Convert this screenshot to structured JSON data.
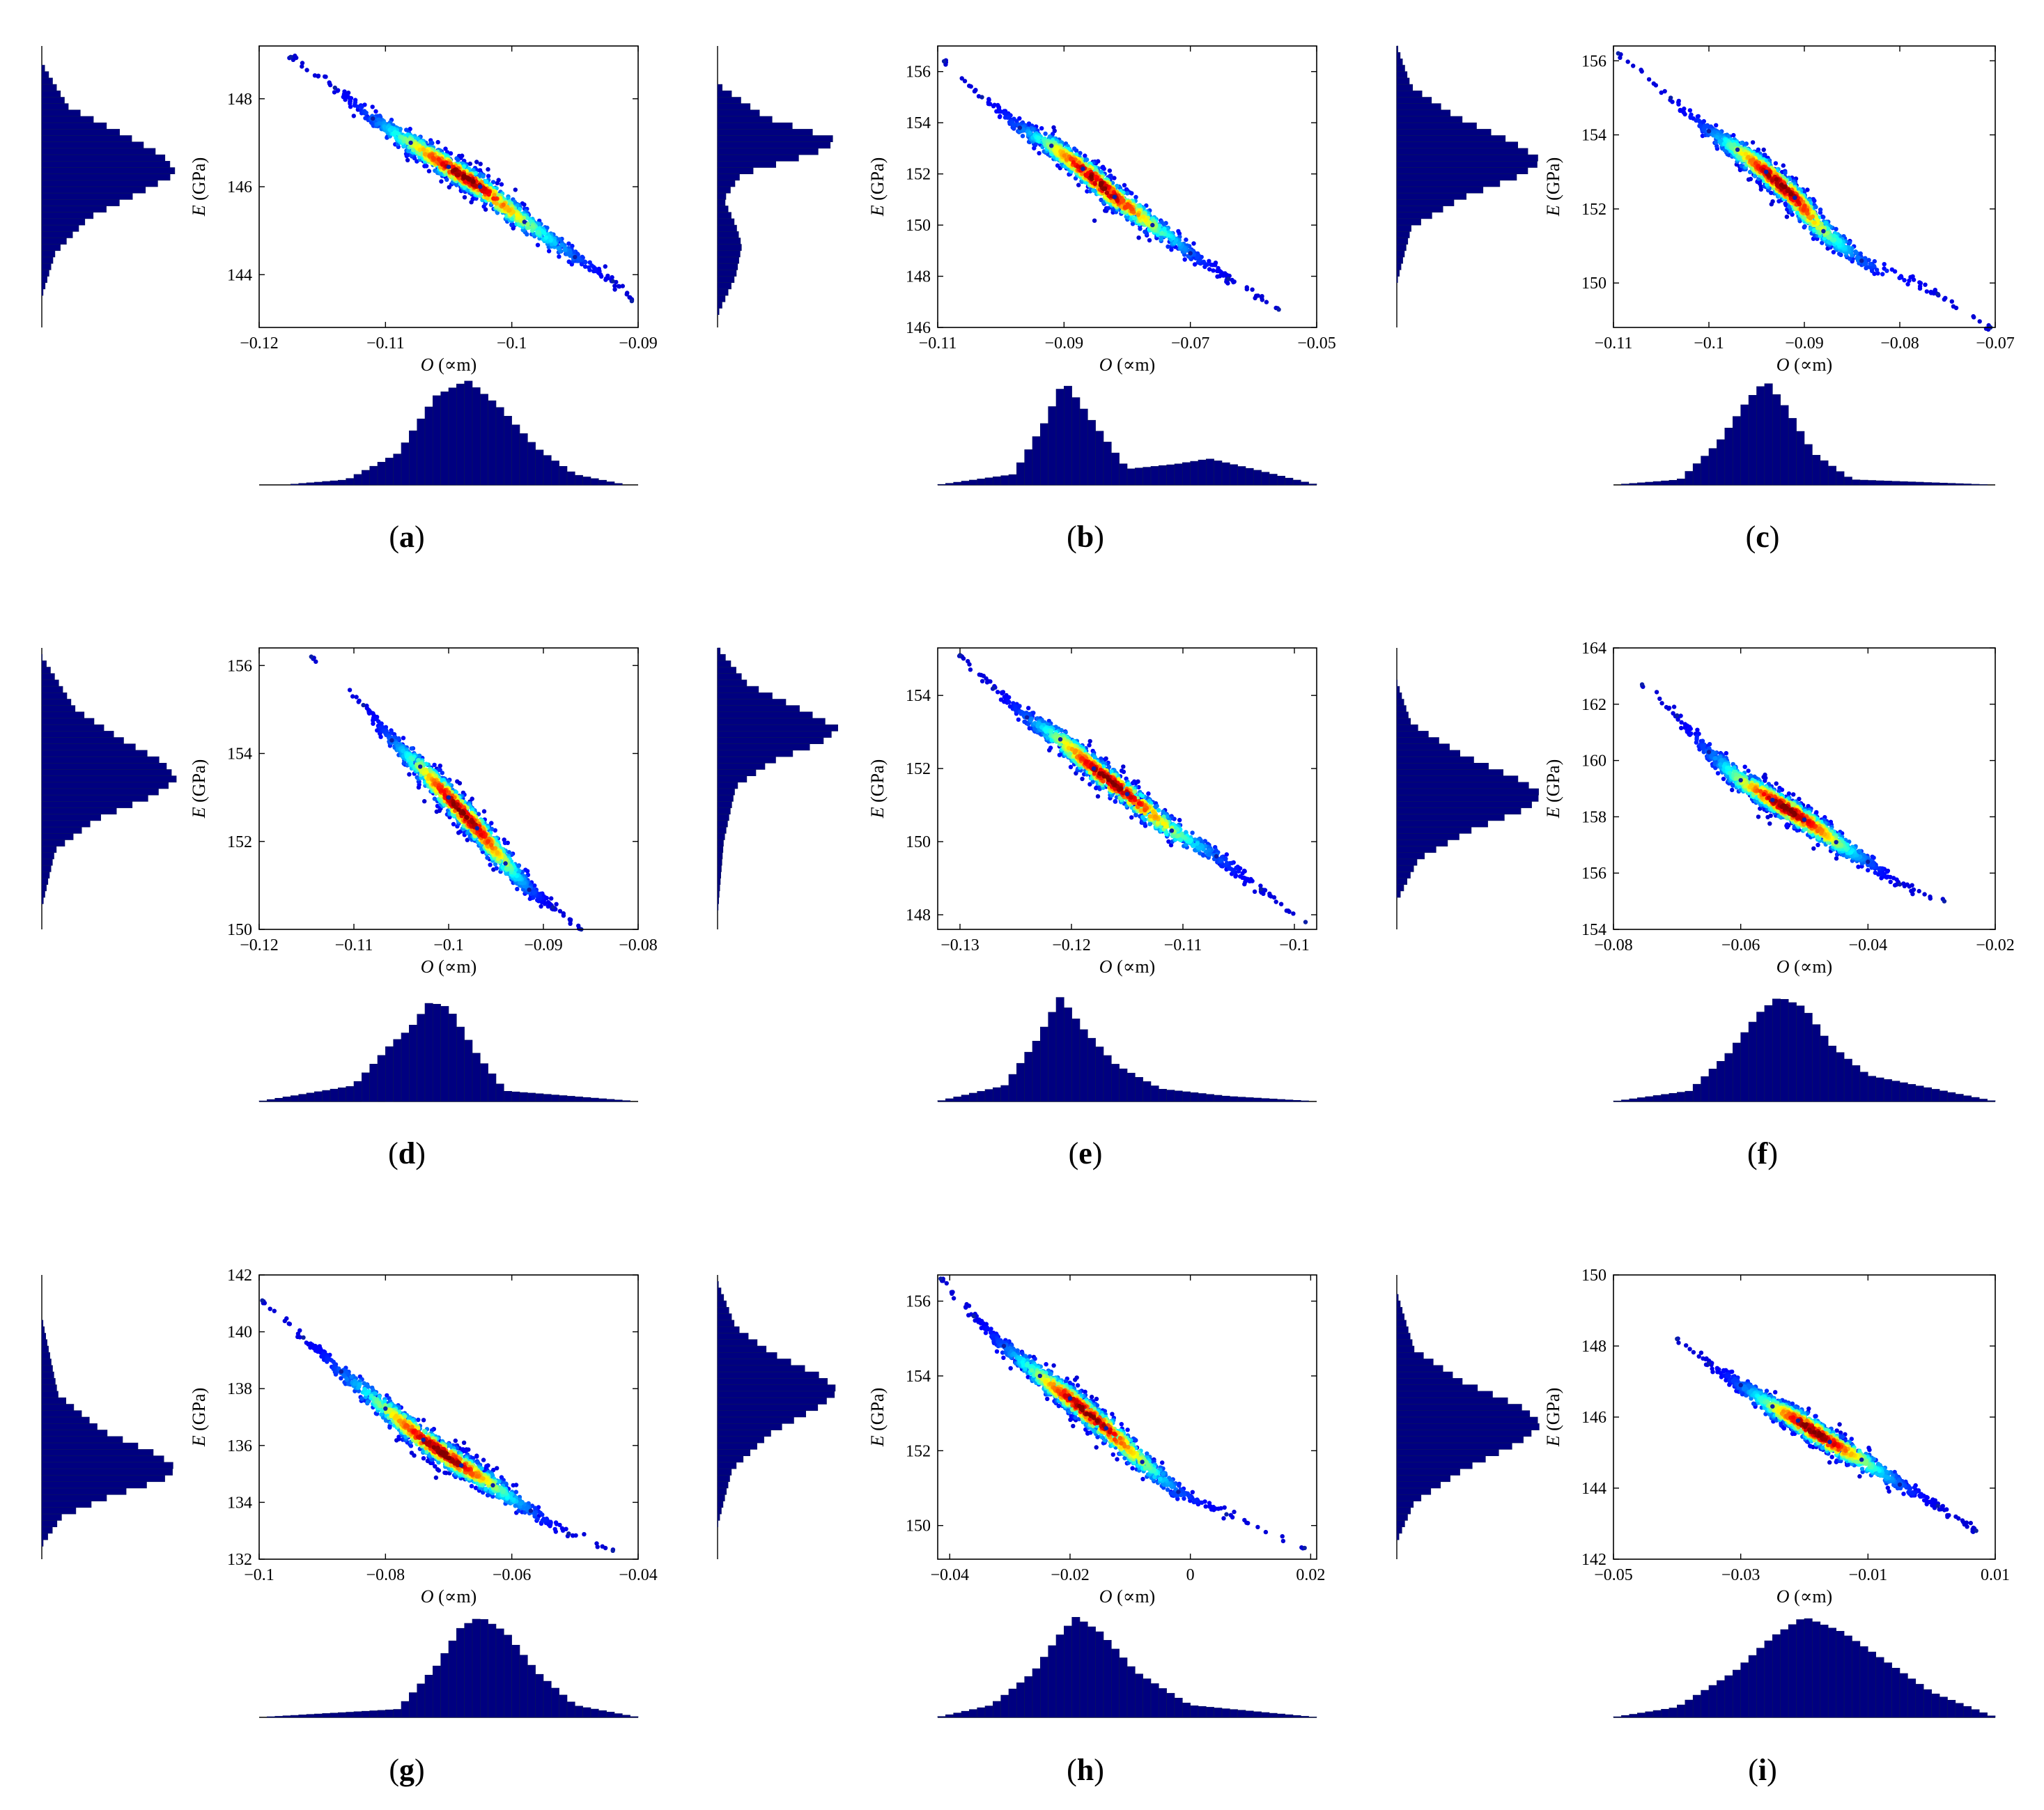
{
  "figure": {
    "chart_count": 9
  },
  "chart_data": [
    {
      "id": "a",
      "type": "scatter",
      "panel_label_prefix": "(",
      "panel_label": "a",
      "panel_label_suffix": ")",
      "xlabel_var": "O",
      "xlabel_unit": " (∝m)",
      "ylabel_var": "E",
      "ylabel_unit": " (GPa)",
      "xlim": [
        -0.12,
        -0.09
      ],
      "ylim": [
        142.8,
        149.2
      ],
      "xticks": [
        -0.12,
        -0.11,
        -0.1,
        -0.09
      ],
      "xtick_labels": [
        "−0.12",
        "−0.11",
        "−0.1",
        "−0.09"
      ],
      "yticks": [
        144,
        146,
        148
      ],
      "ytick_labels": [
        "144",
        "146",
        "148"
      ],
      "points": [
        [
          -0.1175,
          148.95
        ],
        [
          -0.114,
          148.25
        ],
        [
          -0.111,
          147.55
        ],
        [
          -0.108,
          147.0
        ],
        [
          -0.105,
          146.45
        ],
        [
          -0.1025,
          146.0
        ],
        [
          -0.099,
          145.2
        ],
        [
          -0.095,
          144.4
        ],
        [
          -0.092,
          143.85
        ],
        [
          -0.0905,
          143.4
        ]
      ],
      "x_marginal": {
        "x": [
          -0.118,
          -0.113,
          -0.109,
          -0.106,
          -0.1035,
          -0.101,
          -0.098,
          -0.095,
          -0.091
        ],
        "density": [
          0.0,
          0.05,
          0.3,
          0.85,
          1.0,
          0.75,
          0.35,
          0.1,
          0.0
        ]
      },
      "y_marginal": {
        "y": [
          143.5,
          144.5,
          145.3,
          145.9,
          146.3,
          146.7,
          147.2,
          147.8,
          148.8
        ],
        "density": [
          0.0,
          0.1,
          0.35,
          0.75,
          1.0,
          0.9,
          0.6,
          0.2,
          0.0
        ]
      }
    },
    {
      "id": "b",
      "type": "scatter",
      "panel_label_prefix": "(",
      "panel_label": "b",
      "panel_label_suffix": ")",
      "xlabel_var": "O",
      "xlabel_unit": " (∝m)",
      "ylabel_var": "E",
      "ylabel_unit": " (GPa)",
      "xlim": [
        -0.11,
        -0.05
      ],
      "ylim": [
        146.0,
        157.0
      ],
      "xticks": [
        -0.11,
        -0.09,
        -0.07,
        -0.05
      ],
      "xtick_labels": [
        "−0.11",
        "−0.09",
        "−0.07",
        "−0.05"
      ],
      "yticks": [
        146,
        148,
        150,
        152,
        154,
        156
      ],
      "ytick_labels": [
        "146",
        "148",
        "150",
        "152",
        "154",
        "156"
      ],
      "points": [
        [
          -0.109,
          156.4
        ],
        [
          -0.103,
          155.0
        ],
        [
          -0.097,
          153.8
        ],
        [
          -0.092,
          153.1
        ],
        [
          -0.087,
          152.2
        ],
        [
          -0.082,
          151.1
        ],
        [
          -0.076,
          150.0
        ],
        [
          -0.07,
          148.9
        ],
        [
          -0.064,
          147.9
        ],
        [
          -0.056,
          146.7
        ]
      ],
      "x_marginal": {
        "x": [
          -0.11,
          -0.098,
          -0.093,
          -0.09,
          -0.086,
          -0.08,
          -0.072,
          -0.067,
          -0.06,
          -0.05
        ],
        "density": [
          0.0,
          0.1,
          0.6,
          1.0,
          0.65,
          0.15,
          0.2,
          0.25,
          0.15,
          0.0
        ]
      },
      "y_marginal": {
        "y": [
          146.5,
          148.0,
          149.2,
          150.0,
          151.0,
          152.0,
          152.8,
          153.3,
          154.2,
          155.5
        ],
        "density": [
          0.0,
          0.15,
          0.2,
          0.15,
          0.05,
          0.2,
          0.8,
          1.0,
          0.4,
          0.0
        ]
      }
    },
    {
      "id": "c",
      "type": "scatter",
      "panel_label_prefix": "(",
      "panel_label": "c",
      "panel_label_suffix": ")",
      "xlabel_var": "O",
      "xlabel_unit": " (∝m)",
      "ylabel_var": "E",
      "ylabel_unit": " (GPa)",
      "xlim": [
        -0.11,
        -0.07
      ],
      "ylim": [
        148.8,
        156.4
      ],
      "xticks": [
        -0.11,
        -0.1,
        -0.09,
        -0.08,
        -0.07
      ],
      "xtick_labels": [
        "−0.11",
        "−0.1",
        "−0.09",
        "−0.08",
        "−0.07"
      ],
      "yticks": [
        150,
        152,
        154,
        156
      ],
      "ytick_labels": [
        "150",
        "152",
        "154",
        "156"
      ],
      "points": [
        [
          -0.1095,
          156.2
        ],
        [
          -0.104,
          155.0
        ],
        [
          -0.1,
          154.1
        ],
        [
          -0.097,
          153.6
        ],
        [
          -0.094,
          153.0
        ],
        [
          -0.091,
          152.3
        ],
        [
          -0.088,
          151.4
        ],
        [
          -0.084,
          150.6
        ],
        [
          -0.076,
          149.7
        ],
        [
          -0.0705,
          148.8
        ]
      ],
      "x_marginal": {
        "x": [
          -0.11,
          -0.103,
          -0.099,
          -0.096,
          -0.094,
          -0.092,
          -0.089,
          -0.085,
          -0.07
        ],
        "density": [
          0.0,
          0.05,
          0.4,
          0.8,
          1.0,
          0.75,
          0.3,
          0.05,
          0.0
        ]
      },
      "y_marginal": {
        "y": [
          150.0,
          151.5,
          152.3,
          152.9,
          153.3,
          153.8,
          154.5,
          155.3,
          156.4
        ],
        "density": [
          0.0,
          0.1,
          0.45,
          0.85,
          1.0,
          0.8,
          0.4,
          0.1,
          0.0
        ]
      }
    },
    {
      "id": "d",
      "type": "scatter",
      "panel_label_prefix": "(",
      "panel_label": "d",
      "panel_label_suffix": ")",
      "xlabel_var": "O",
      "xlabel_unit": " (∝m)",
      "ylabel_var": "E",
      "ylabel_unit": " (GPa)",
      "xlim": [
        -0.12,
        -0.08
      ],
      "ylim": [
        150.0,
        156.4
      ],
      "xticks": [
        -0.12,
        -0.11,
        -0.1,
        -0.09,
        -0.08
      ],
      "xtick_labels": [
        "−0.12",
        "−0.11",
        "−0.1",
        "−0.09",
        "−0.08"
      ],
      "yticks": [
        150,
        152,
        154,
        156
      ],
      "ytick_labels": [
        "150",
        "152",
        "154",
        "156"
      ],
      "points": [
        [
          -0.1145,
          156.2
        ],
        [
          -0.109,
          155.1
        ],
        [
          -0.106,
          154.3
        ],
        [
          -0.103,
          153.7
        ],
        [
          -0.1,
          153.0
        ],
        [
          -0.097,
          152.3
        ],
        [
          -0.094,
          151.5
        ],
        [
          -0.0915,
          150.9
        ],
        [
          -0.089,
          150.5
        ],
        [
          -0.086,
          150.0
        ]
      ],
      "x_marginal": {
        "x": [
          -0.12,
          -0.11,
          -0.106,
          -0.104,
          -0.102,
          -0.1,
          -0.097,
          -0.094,
          -0.08
        ],
        "density": [
          0.0,
          0.15,
          0.55,
          0.7,
          0.95,
          0.9,
          0.45,
          0.1,
          0.0
        ]
      },
      "y_marginal": {
        "y": [
          150.5,
          151.8,
          152.5,
          153.0,
          153.4,
          153.8,
          154.3,
          155.0,
          156.2
        ],
        "density": [
          0.0,
          0.1,
          0.4,
          0.8,
          1.0,
          0.9,
          0.6,
          0.25,
          0.0
        ]
      }
    },
    {
      "id": "e",
      "type": "scatter",
      "panel_label_prefix": "(",
      "panel_label": "e",
      "panel_label_suffix": ")",
      "xlabel_var": "O",
      "xlabel_unit": " (∝m)",
      "ylabel_var": "E",
      "ylabel_unit": " (GPa)",
      "xlim": [
        -0.132,
        -0.098
      ],
      "ylim": [
        147.6,
        155.3
      ],
      "xticks": [
        -0.13,
        -0.12,
        -0.11,
        -0.1
      ],
      "xtick_labels": [
        "−0.13",
        "−0.12",
        "−0.11",
        "−0.1"
      ],
      "yticks": [
        148,
        150,
        152,
        154
      ],
      "ytick_labels": [
        "148",
        "150",
        "152",
        "154"
      ],
      "points": [
        [
          -0.13,
          155.1
        ],
        [
          -0.127,
          154.2
        ],
        [
          -0.124,
          153.4
        ],
        [
          -0.121,
          152.8
        ],
        [
          -0.118,
          152.0
        ],
        [
          -0.115,
          151.3
        ],
        [
          -0.111,
          150.3
        ],
        [
          -0.107,
          149.6
        ],
        [
          -0.103,
          148.7
        ],
        [
          -0.099,
          147.8
        ]
      ],
      "x_marginal": {
        "x": [
          -0.132,
          -0.126,
          -0.123,
          -0.121,
          -0.119,
          -0.116,
          -0.112,
          -0.106,
          -0.098
        ],
        "density": [
          0.0,
          0.15,
          0.6,
          1.0,
          0.7,
          0.35,
          0.12,
          0.05,
          0.0
        ]
      },
      "y_marginal": {
        "y": [
          148.0,
          150.0,
          151.5,
          152.2,
          152.7,
          153.1,
          153.6,
          154.3,
          155.3
        ],
        "density": [
          0.0,
          0.05,
          0.15,
          0.45,
          0.85,
          1.0,
          0.7,
          0.25,
          0.0
        ]
      }
    },
    {
      "id": "f",
      "type": "scatter",
      "panel_label_prefix": "(",
      "panel_label": "f",
      "panel_label_suffix": ")",
      "xlabel_var": "O",
      "xlabel_unit": " (∝m)",
      "ylabel_var": "E",
      "ylabel_unit": " (GPa)",
      "xlim": [
        -0.08,
        -0.02
      ],
      "ylim": [
        154.0,
        164.0
      ],
      "xticks": [
        -0.08,
        -0.06,
        -0.04,
        -0.02
      ],
      "xtick_labels": [
        "−0.08",
        "−0.06",
        "−0.04",
        "−0.02"
      ],
      "yticks": [
        154,
        156,
        158,
        160,
        162,
        164
      ],
      "ytick_labels": [
        "154",
        "156",
        "158",
        "160",
        "162",
        "164"
      ],
      "points": [
        [
          -0.0755,
          162.7
        ],
        [
          -0.07,
          161.6
        ],
        [
          -0.065,
          160.3
        ],
        [
          -0.06,
          159.3
        ],
        [
          -0.055,
          158.6
        ],
        [
          -0.05,
          157.9
        ],
        [
          -0.045,
          157.1
        ],
        [
          -0.04,
          156.4
        ],
        [
          -0.035,
          155.6
        ],
        [
          -0.028,
          155.0
        ]
      ],
      "x_marginal": {
        "x": [
          -0.08,
          -0.068,
          -0.062,
          -0.057,
          -0.054,
          -0.05,
          -0.046,
          -0.04,
          -0.02
        ],
        "density": [
          0.0,
          0.1,
          0.45,
          0.85,
          1.0,
          0.9,
          0.55,
          0.25,
          0.0
        ]
      },
      "y_marginal": {
        "y": [
          155.0,
          156.5,
          157.5,
          158.3,
          158.8,
          159.3,
          160.2,
          161.3,
          162.8
        ],
        "density": [
          0.0,
          0.15,
          0.5,
          0.9,
          1.0,
          0.85,
          0.45,
          0.1,
          0.0
        ]
      }
    },
    {
      "id": "g",
      "type": "scatter",
      "panel_label_prefix": "(",
      "panel_label": "g",
      "panel_label_suffix": ")",
      "xlabel_var": "O",
      "xlabel_unit": " (∝m)",
      "ylabel_var": "E",
      "ylabel_unit": " (GPa)",
      "xlim": [
        -0.1,
        -0.04
      ],
      "ylim": [
        132.0,
        142.0
      ],
      "xticks": [
        -0.1,
        -0.08,
        -0.06,
        -0.04
      ],
      "xtick_labels": [
        "−0.1",
        "−0.08",
        "−0.06",
        "−0.04"
      ],
      "yticks": [
        132,
        134,
        136,
        138,
        140,
        142
      ],
      "ytick_labels": [
        "132",
        "134",
        "136",
        "138",
        "140",
        "142"
      ],
      "points": [
        [
          -0.0995,
          141.1
        ],
        [
          -0.093,
          139.8
        ],
        [
          -0.087,
          138.6
        ],
        [
          -0.08,
          137.3
        ],
        [
          -0.074,
          136.2
        ],
        [
          -0.068,
          135.3
        ],
        [
          -0.063,
          134.6
        ],
        [
          -0.057,
          133.7
        ],
        [
          -0.051,
          132.9
        ],
        [
          -0.044,
          132.3
        ]
      ],
      "x_marginal": {
        "x": [
          -0.1,
          -0.078,
          -0.072,
          -0.068,
          -0.065,
          -0.061,
          -0.056,
          -0.05,
          -0.04
        ],
        "density": [
          0.0,
          0.08,
          0.5,
          0.9,
          1.0,
          0.85,
          0.45,
          0.12,
          0.0
        ]
      },
      "y_marginal": {
        "y": [
          132.5,
          133.5,
          134.2,
          134.8,
          135.2,
          135.7,
          136.5,
          137.8,
          140.5
        ],
        "density": [
          0.0,
          0.15,
          0.5,
          0.9,
          1.0,
          0.85,
          0.45,
          0.12,
          0.0
        ]
      }
    },
    {
      "id": "h",
      "type": "scatter",
      "panel_label_prefix": "(",
      "panel_label": "h",
      "panel_label_suffix": ")",
      "xlabel_var": "O",
      "xlabel_unit": " (∝m)",
      "ylabel_var": "E",
      "ylabel_unit": " (GPa)",
      "xlim": [
        -0.042,
        0.021
      ],
      "ylim": [
        149.1,
        156.7
      ],
      "xticks": [
        -0.04,
        -0.02,
        0,
        0.02
      ],
      "xtick_labels": [
        "−0.04",
        "−0.02",
        "0",
        "0.02"
      ],
      "yticks": [
        150,
        152,
        154,
        156
      ],
      "ytick_labels": [
        "150",
        "152",
        "154",
        "156"
      ],
      "points": [
        [
          -0.0415,
          156.6
        ],
        [
          -0.036,
          155.6
        ],
        [
          -0.031,
          154.8
        ],
        [
          -0.025,
          154.0
        ],
        [
          -0.02,
          153.4
        ],
        [
          -0.014,
          152.6
        ],
        [
          -0.008,
          151.7
        ],
        [
          -0.002,
          150.9
        ],
        [
          0.006,
          150.3
        ],
        [
          0.019,
          149.4
        ]
      ],
      "x_marginal": {
        "x": [
          -0.042,
          -0.033,
          -0.026,
          -0.022,
          -0.019,
          -0.015,
          -0.009,
          0.0,
          0.021
        ],
        "density": [
          0.0,
          0.12,
          0.45,
          0.8,
          1.0,
          0.85,
          0.45,
          0.12,
          0.0
        ]
      },
      "y_marginal": {
        "y": [
          150.0,
          151.5,
          152.5,
          153.2,
          153.6,
          154.0,
          154.6,
          155.3,
          156.5
        ],
        "density": [
          0.0,
          0.12,
          0.45,
          0.85,
          1.0,
          0.85,
          0.45,
          0.15,
          0.0
        ]
      }
    },
    {
      "id": "i",
      "type": "scatter",
      "panel_label_prefix": "(",
      "panel_label": "i",
      "panel_label_suffix": ")",
      "xlabel_var": "O",
      "xlabel_unit": " (∝m)",
      "ylabel_var": "E",
      "ylabel_unit": " (GPa)",
      "xlim": [
        -0.05,
        0.01
      ],
      "ylim": [
        142.0,
        150.0
      ],
      "xticks": [
        -0.05,
        -0.03,
        -0.01,
        0.01
      ],
      "xtick_labels": [
        "−0.05",
        "−0.03",
        "−0.01",
        "0.01"
      ],
      "yticks": [
        142,
        144,
        146,
        148,
        150
      ],
      "ytick_labels": [
        "142",
        "144",
        "146",
        "148",
        "150"
      ],
      "points": [
        [
          -0.04,
          148.2
        ],
        [
          -0.035,
          147.5
        ],
        [
          -0.03,
          146.9
        ],
        [
          -0.025,
          146.3
        ],
        [
          -0.021,
          145.9
        ],
        [
          -0.016,
          145.3
        ],
        [
          -0.011,
          144.8
        ],
        [
          -0.005,
          144.1
        ],
        [
          0.001,
          143.5
        ],
        [
          0.007,
          142.8
        ]
      ],
      "x_marginal": {
        "x": [
          -0.05,
          -0.04,
          -0.031,
          -0.025,
          -0.02,
          -0.014,
          -0.007,
          0.0,
          0.01
        ],
        "density": [
          0.0,
          0.1,
          0.45,
          0.8,
          1.0,
          0.85,
          0.55,
          0.25,
          0.0
        ]
      },
      "y_marginal": {
        "y": [
          142.5,
          143.6,
          144.5,
          145.3,
          145.8,
          146.3,
          147.0,
          147.9,
          149.5
        ],
        "density": [
          0.0,
          0.12,
          0.45,
          0.85,
          1.0,
          0.85,
          0.45,
          0.12,
          0.0
        ]
      }
    }
  ]
}
